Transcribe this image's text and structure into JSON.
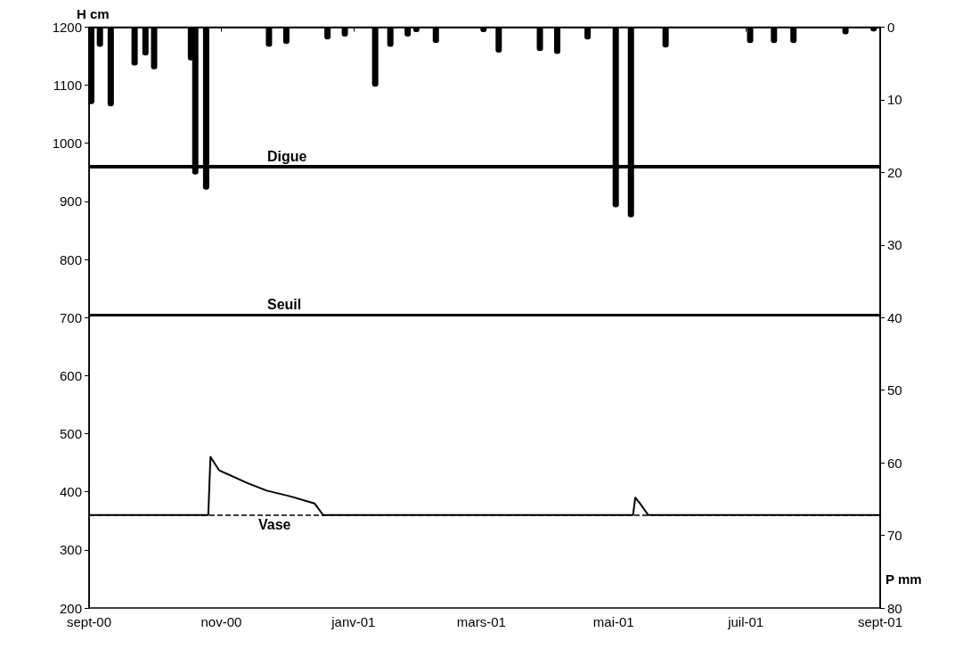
{
  "chart_data": {
    "type": "line",
    "xlim": [
      "2000-09-01",
      "2001-09-01"
    ],
    "xticks": [
      {
        "value": "2000-09-01",
        "label": "sept-00"
      },
      {
        "value": "2000-11-01",
        "label": "nov-00"
      },
      {
        "value": "2001-01-01",
        "label": "janv-01"
      },
      {
        "value": "2001-03-01",
        "label": "mars-01"
      },
      {
        "value": "2001-05-01",
        "label": "mai-01"
      },
      {
        "value": "2001-07-01",
        "label": "juil-01"
      },
      {
        "value": "2001-09-01",
        "label": "sept-01"
      }
    ],
    "ylabel": "H cm",
    "y2label": "P mm",
    "ylim": [
      200,
      1200
    ],
    "yticks": [
      200,
      300,
      400,
      500,
      600,
      700,
      800,
      900,
      1000,
      1100,
      1200
    ],
    "y2lim": [
      80,
      0
    ],
    "y2ticks": [
      0,
      10,
      20,
      30,
      40,
      50,
      60,
      70,
      80
    ],
    "grid": false,
    "marker": "none",
    "line_style": "solid",
    "series": [
      {
        "type": "bar",
        "axis": "y2",
        "color": "#000000",
        "x": [
          "2000-09-02",
          "2000-09-06",
          "2000-09-11",
          "2000-09-22",
          "2000-09-27",
          "2000-10-01",
          "2000-10-18",
          "2000-10-20",
          "2000-10-24",
          "2000-10-25",
          "2000-11-23",
          "2000-12-01",
          "2000-12-20",
          "2000-12-28",
          "2001-01-11",
          "2001-01-18",
          "2001-01-26",
          "2001-01-30",
          "2001-02-08",
          "2001-03-02",
          "2001-03-09",
          "2001-03-28",
          "2001-04-05",
          "2001-04-19",
          "2001-05-02",
          "2001-05-09",
          "2001-05-25",
          "2001-07-03",
          "2001-07-14",
          "2001-07-23",
          "2001-08-16",
          "2001-08-29"
        ],
        "values": [
          10.6,
          2.7,
          10.9,
          5.3,
          3.9,
          5.8,
          4.6,
          20.3,
          null,
          22.4,
          2.7,
          2.3,
          1.7,
          1.3,
          8.2,
          2.7,
          1.3,
          0.7,
          2.2,
          0.7,
          3.5,
          3.3,
          3.7,
          1.7,
          24.8,
          26.2,
          2.8,
          2.2,
          2.2,
          2.2,
          1.0,
          0.6
        ]
      },
      {
        "axis": "y",
        "color": "#000000",
        "x": [
          "2000-09-01",
          "2000-10-26",
          "2000-10-27",
          "2000-10-31",
          "2000-11-13",
          "2000-11-22",
          "2000-12-03",
          "2000-12-14",
          "2000-12-18",
          "2001-05-10",
          "2001-05-11",
          "2001-05-13",
          "2001-05-17",
          "2001-09-01"
        ],
        "values": [
          360,
          360,
          460,
          437,
          415,
          402,
          392,
          380,
          360,
          360,
          390,
          381,
          360,
          360
        ]
      }
    ],
    "ref_lines": [
      {
        "axis": "y",
        "value": 960,
        "label": "Digue",
        "color": "#000000",
        "line_style": "solid"
      },
      {
        "axis": "y",
        "value": 705,
        "label": "Seuil",
        "color": "#000000",
        "line_style": "solid"
      },
      {
        "axis": "y",
        "value": 360,
        "label": "Vase",
        "color": "#000000",
        "line_style": "dashed"
      }
    ]
  }
}
